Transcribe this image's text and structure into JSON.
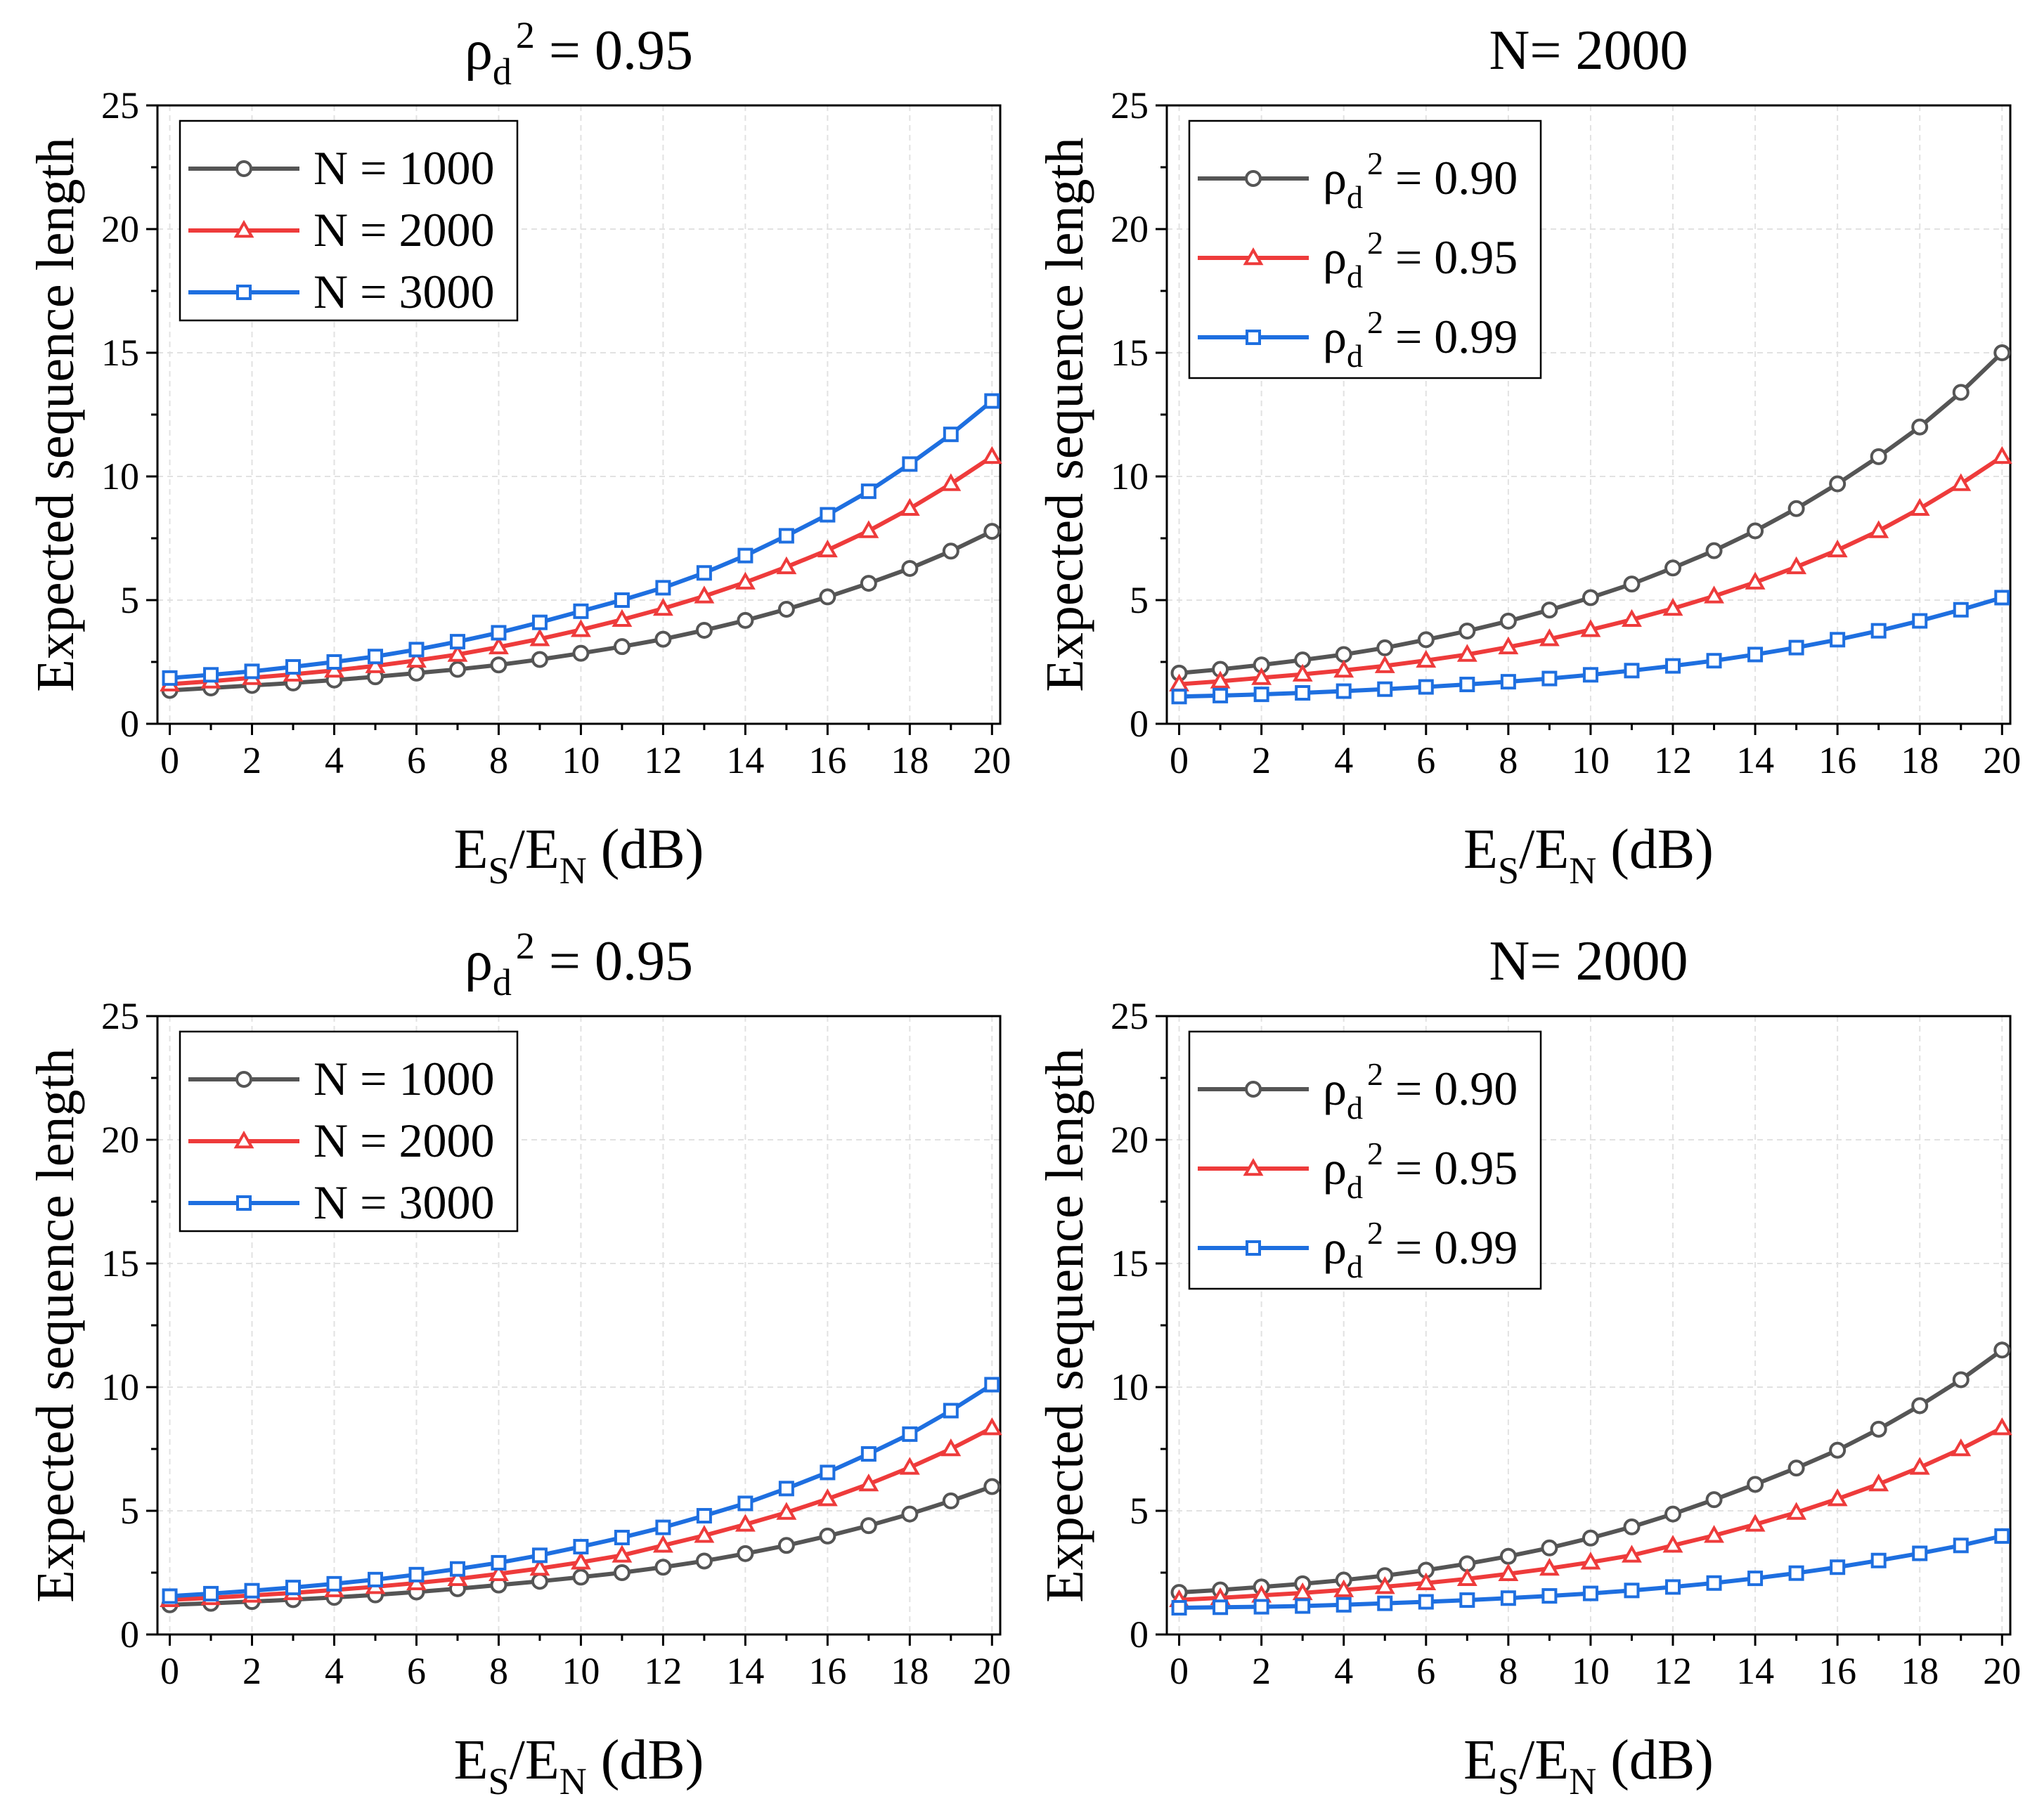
{
  "colors": {
    "black_series": "#555555",
    "red_series": "#EE3B3B",
    "blue_series": "#1E6FE0",
    "axis": "#000000",
    "grid": "#e2e2e2"
  },
  "chart_data": [
    {
      "type": "line",
      "title_main": "ρ",
      "title_sub": "d",
      "title_sup": "2",
      "title_rest": " = 0.95",
      "xlabel_main": "E",
      "xlabel_sub1": "S",
      "xlabel_mid": "/E",
      "xlabel_sub2": "N",
      "xlabel_rest": " (dB)",
      "ylabel": "Expected sequence length",
      "xlim": [
        -0.3,
        20.2
      ],
      "ylim": [
        0,
        25
      ],
      "xticks": [
        0,
        2,
        4,
        6,
        8,
        10,
        12,
        14,
        16,
        18,
        20
      ],
      "yticks": [
        0,
        5,
        10,
        15,
        20,
        25
      ],
      "legend_kind": "N",
      "legend_position": "top-left",
      "grid": true,
      "x": [
        0,
        1,
        2,
        3,
        4,
        5,
        6,
        7,
        8,
        9,
        10,
        11,
        12,
        13,
        14,
        15,
        16,
        17,
        18,
        19,
        20
      ],
      "series": [
        {
          "name": "N =  1000",
          "legend_main": "N =  1000",
          "color": "#555555",
          "marker": "circle",
          "values": [
            1.35,
            1.45,
            1.55,
            1.65,
            1.77,
            1.9,
            2.05,
            2.2,
            2.38,
            2.6,
            2.85,
            3.12,
            3.42,
            3.78,
            4.18,
            4.63,
            5.13,
            5.68,
            6.28,
            6.98,
            7.78
          ]
        },
        {
          "name": "N =  2000",
          "legend_main": "N =  2000",
          "color": "#EE3B3B",
          "marker": "triangle",
          "values": [
            1.6,
            1.72,
            1.86,
            2.0,
            2.16,
            2.34,
            2.56,
            2.8,
            3.1,
            3.43,
            3.8,
            4.21,
            4.66,
            5.16,
            5.72,
            6.34,
            7.02,
            7.8,
            8.7,
            9.7,
            10.8
          ]
        },
        {
          "name": "N =  3000",
          "legend_main": "N =  3000",
          "color": "#1E6FE0",
          "marker": "square",
          "values": [
            1.85,
            1.98,
            2.12,
            2.3,
            2.5,
            2.72,
            3.0,
            3.32,
            3.68,
            4.1,
            4.55,
            5.0,
            5.5,
            6.1,
            6.8,
            7.6,
            8.45,
            9.4,
            10.5,
            11.7,
            13.05
          ]
        }
      ]
    },
    {
      "type": "line",
      "title_main": "N= 2000",
      "title_sub": "",
      "title_sup": "",
      "title_rest": "",
      "xlabel_main": "E",
      "xlabel_sub1": "S",
      "xlabel_mid": "/E",
      "xlabel_sub2": "N",
      "xlabel_rest": " (dB)",
      "ylabel": "Expected sequence length",
      "xlim": [
        -0.3,
        20.2
      ],
      "ylim": [
        0,
        25
      ],
      "xticks": [
        0,
        2,
        4,
        6,
        8,
        10,
        12,
        14,
        16,
        18,
        20
      ],
      "yticks": [
        0,
        5,
        10,
        15,
        20,
        25
      ],
      "legend_kind": "rho",
      "legend_position": "top-left",
      "grid": true,
      "x": [
        0,
        1,
        2,
        3,
        4,
        5,
        6,
        7,
        8,
        9,
        10,
        11,
        12,
        13,
        14,
        15,
        16,
        17,
        18,
        19,
        20
      ],
      "series": [
        {
          "name": "ρd2 =  0.90",
          "legend_main": "ρ",
          "legend_sub": "d",
          "legend_sup": "2",
          "legend_rest": " =  0.90",
          "color": "#555555",
          "marker": "circle",
          "values": [
            2.05,
            2.2,
            2.38,
            2.58,
            2.8,
            3.07,
            3.4,
            3.75,
            4.15,
            4.6,
            5.1,
            5.65,
            6.3,
            7.0,
            7.8,
            8.7,
            9.7,
            10.8,
            12.0,
            13.4,
            15.0
          ]
        },
        {
          "name": "ρd2 =  0.95",
          "legend_main": "ρ",
          "legend_sub": "d",
          "legend_sup": "2",
          "legend_rest": " =  0.95",
          "color": "#EE3B3B",
          "marker": "triangle",
          "values": [
            1.6,
            1.72,
            1.86,
            2.0,
            2.16,
            2.34,
            2.56,
            2.8,
            3.1,
            3.43,
            3.8,
            4.21,
            4.66,
            5.16,
            5.72,
            6.34,
            7.02,
            7.8,
            8.7,
            9.7,
            10.8
          ]
        },
        {
          "name": "ρd2 =  0.99",
          "legend_main": "ρ",
          "legend_sub": "d",
          "legend_sup": "2",
          "legend_rest": " =  0.99",
          "color": "#1E6FE0",
          "marker": "square",
          "values": [
            1.1,
            1.14,
            1.19,
            1.25,
            1.32,
            1.4,
            1.49,
            1.59,
            1.7,
            1.83,
            1.98,
            2.15,
            2.34,
            2.55,
            2.8,
            3.08,
            3.4,
            3.76,
            4.16,
            4.61,
            5.1
          ]
        }
      ]
    },
    {
      "type": "line",
      "title_main": "ρ",
      "title_sub": "d",
      "title_sup": "2",
      "title_rest": " = 0.95",
      "xlabel_main": "E",
      "xlabel_sub1": "S",
      "xlabel_mid": "/E",
      "xlabel_sub2": "N",
      "xlabel_rest": " (dB)",
      "ylabel": "Expected sequence length",
      "xlim": [
        -0.3,
        20.2
      ],
      "ylim": [
        0,
        25
      ],
      "xticks": [
        0,
        2,
        4,
        6,
        8,
        10,
        12,
        14,
        16,
        18,
        20
      ],
      "yticks": [
        0,
        5,
        10,
        15,
        20,
        25
      ],
      "legend_kind": "N",
      "legend_position": "top-left",
      "grid": true,
      "x": [
        0,
        1,
        2,
        3,
        4,
        5,
        6,
        7,
        8,
        9,
        10,
        11,
        12,
        13,
        14,
        15,
        16,
        17,
        18,
        19,
        20
      ],
      "series": [
        {
          "name": "N =  1000",
          "legend_main": "N =  1000",
          "color": "#555555",
          "marker": "circle",
          "values": [
            1.2,
            1.26,
            1.33,
            1.41,
            1.5,
            1.6,
            1.72,
            1.85,
            2.0,
            2.15,
            2.32,
            2.5,
            2.72,
            2.97,
            3.27,
            3.6,
            3.98,
            4.4,
            4.87,
            5.4,
            5.98
          ]
        },
        {
          "name": "N =  2000",
          "legend_main": "N =  2000",
          "color": "#EE3B3B",
          "marker": "triangle",
          "values": [
            1.4,
            1.48,
            1.58,
            1.68,
            1.8,
            1.93,
            2.08,
            2.25,
            2.45,
            2.67,
            2.92,
            3.2,
            3.6,
            4.0,
            4.45,
            4.93,
            5.48,
            6.08,
            6.75,
            7.5,
            8.35
          ]
        },
        {
          "name": "N =  3000",
          "legend_main": "N =  3000",
          "color": "#1E6FE0",
          "marker": "square",
          "values": [
            1.55,
            1.65,
            1.77,
            1.9,
            2.05,
            2.22,
            2.42,
            2.65,
            2.9,
            3.2,
            3.55,
            3.92,
            4.33,
            4.8,
            5.3,
            5.9,
            6.55,
            7.3,
            8.1,
            9.05,
            10.1
          ]
        }
      ]
    },
    {
      "type": "line",
      "title_main": "N= 2000",
      "title_sub": "",
      "title_sup": "",
      "title_rest": "",
      "xlabel_main": "E",
      "xlabel_sub1": "S",
      "xlabel_mid": "/E",
      "xlabel_sub2": "N",
      "xlabel_rest": " (dB)",
      "ylabel": "Expected sequence length",
      "xlim": [
        -0.3,
        20.2
      ],
      "ylim": [
        0,
        25
      ],
      "xticks": [
        0,
        2,
        4,
        6,
        8,
        10,
        12,
        14,
        16,
        18,
        20
      ],
      "yticks": [
        0,
        5,
        10,
        15,
        20,
        25
      ],
      "legend_kind": "rho",
      "legend_position": "top-left",
      "grid": true,
      "x": [
        0,
        1,
        2,
        3,
        4,
        5,
        6,
        7,
        8,
        9,
        10,
        11,
        12,
        13,
        14,
        15,
        16,
        17,
        18,
        19,
        20
      ],
      "series": [
        {
          "name": "ρd2 =  0.90",
          "legend_main": "ρ",
          "legend_sub": "d",
          "legend_sup": "2",
          "legend_rest": " =  0.90",
          "color": "#555555",
          "marker": "circle",
          "values": [
            1.7,
            1.8,
            1.92,
            2.05,
            2.2,
            2.38,
            2.6,
            2.86,
            3.16,
            3.5,
            3.9,
            4.35,
            4.87,
            5.45,
            6.07,
            6.73,
            7.45,
            8.3,
            9.25,
            10.3,
            11.5
          ]
        },
        {
          "name": "ρd2 =  0.95",
          "legend_main": "ρ",
          "legend_sub": "d",
          "legend_sup": "2",
          "legend_rest": " =  0.95",
          "color": "#EE3B3B",
          "marker": "triangle",
          "values": [
            1.4,
            1.48,
            1.58,
            1.68,
            1.8,
            1.93,
            2.08,
            2.25,
            2.45,
            2.67,
            2.92,
            3.2,
            3.6,
            4.0,
            4.45,
            4.93,
            5.48,
            6.08,
            6.75,
            7.5,
            8.35
          ]
        },
        {
          "name": "ρd2 =  0.99",
          "legend_main": "ρ",
          "legend_sub": "d",
          "legend_sup": "2",
          "legend_rest": " =  0.99",
          "color": "#1E6FE0",
          "marker": "square",
          "values": [
            1.08,
            1.1,
            1.12,
            1.15,
            1.2,
            1.26,
            1.32,
            1.39,
            1.47,
            1.56,
            1.66,
            1.78,
            1.92,
            2.08,
            2.27,
            2.48,
            2.72,
            2.99,
            3.28,
            3.6,
            3.98
          ]
        }
      ]
    }
  ]
}
